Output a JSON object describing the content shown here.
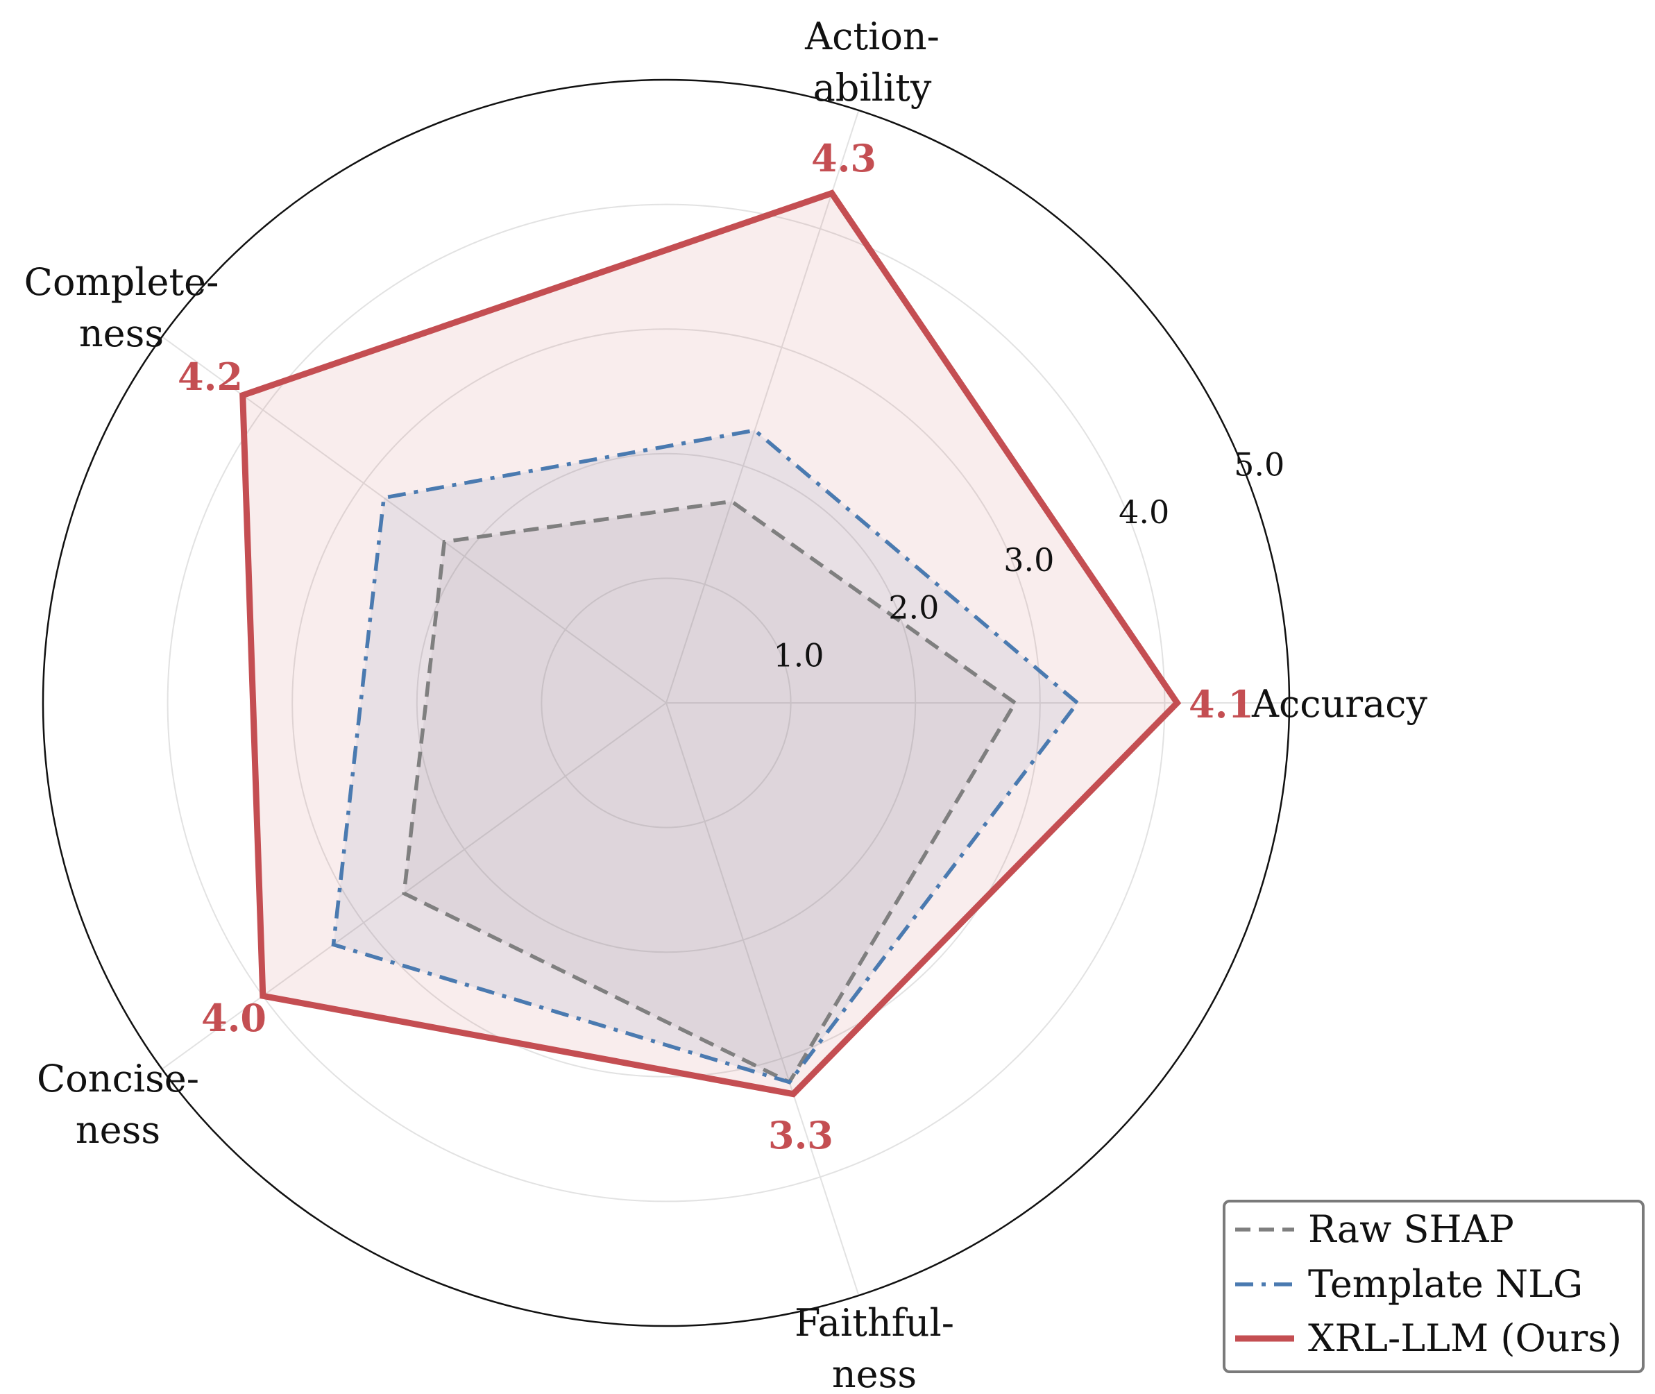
{
  "chart_data": {
    "type": "radar",
    "axes": [
      {
        "label_lines": [
          "Accuracy"
        ]
      },
      {
        "label_lines": [
          "Action-",
          "ability"
        ]
      },
      {
        "label_lines": [
          "Complete-",
          "ness"
        ]
      },
      {
        "label_lines": [
          "Concise-",
          "ness"
        ]
      },
      {
        "label_lines": [
          "Faithful-",
          "ness"
        ]
      }
    ],
    "rlim": [
      0,
      5
    ],
    "rticks": [
      1,
      2,
      3,
      4,
      5
    ],
    "rtick_labels": [
      "1.0",
      "2.0",
      "3.0",
      "4.0",
      "5.0"
    ],
    "grid": true,
    "series": [
      {
        "name": "Raw SHAP",
        "values": [
          2.8,
          1.7,
          2.2,
          2.6,
          3.2
        ],
        "color": "#7f7f7f",
        "linestyle": "dashed"
      },
      {
        "name": "Template NLG",
        "values": [
          3.3,
          2.3,
          2.8,
          3.3,
          3.2
        ],
        "color": "#4a7ab0",
        "linestyle": "dashdot"
      },
      {
        "name": "XRL-LLM (Ours)",
        "values": [
          4.1,
          4.3,
          4.2,
          4.0,
          3.3
        ],
        "color": "#c44e52",
        "linestyle": "solid"
      }
    ],
    "value_labels": [
      "4.1",
      "4.3",
      "4.2",
      "4.0",
      "3.3"
    ],
    "value_label_color": "#c44e52",
    "legend_position": "lower-right"
  }
}
